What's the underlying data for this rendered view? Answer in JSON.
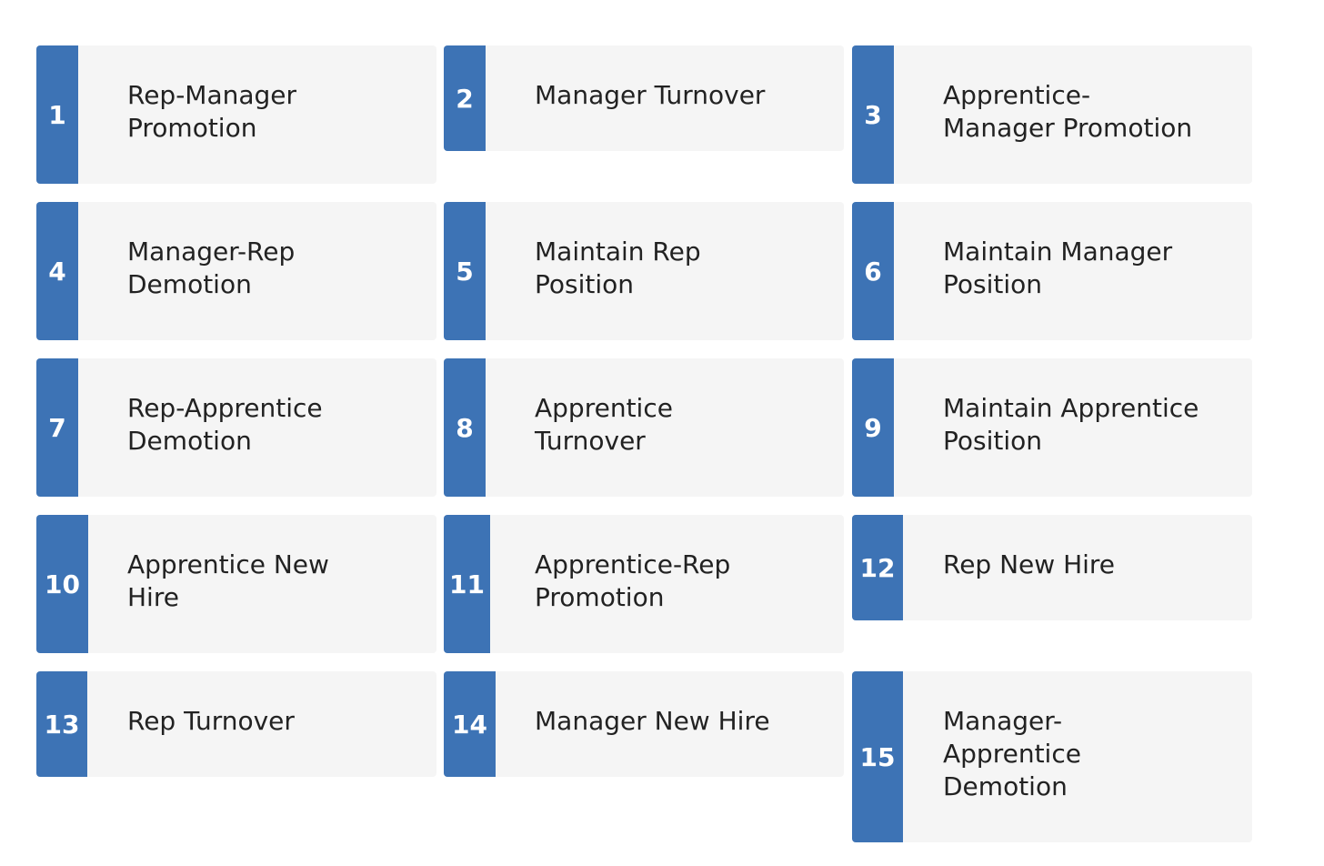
{
  "accent_color": "#3d73b5",
  "card_background": "#f5f5f5",
  "items": [
    {
      "number": "1",
      "lines": [
        "Rep-Manager",
        "Promotion"
      ]
    },
    {
      "number": "2",
      "lines": [
        "Manager Turnover",
        ""
      ]
    },
    {
      "number": "3",
      "lines": [
        "Apprentice-",
        "Manager Promotion"
      ]
    },
    {
      "number": "4",
      "lines": [
        "Manager-Rep",
        "Demotion"
      ]
    },
    {
      "number": "5",
      "lines": [
        "Maintain Rep",
        "Position"
      ]
    },
    {
      "number": "6",
      "lines": [
        "Maintain Manager",
        "Position"
      ]
    },
    {
      "number": "7",
      "lines": [
        "Rep-Apprentice",
        "Demotion"
      ]
    },
    {
      "number": "8",
      "lines": [
        "Apprentice",
        "Turnover"
      ]
    },
    {
      "number": "9",
      "lines": [
        "Maintain Apprentice",
        "Position"
      ]
    },
    {
      "number": "10",
      "lines": [
        "Apprentice New",
        "Hire"
      ]
    },
    {
      "number": "11",
      "lines": [
        "Apprentice-Rep",
        "Promotion"
      ]
    },
    {
      "number": "12",
      "lines": [
        "Rep New Hire",
        ""
      ]
    },
    {
      "number": "13",
      "lines": [
        "Rep Turnover",
        ""
      ]
    },
    {
      "number": "14",
      "lines": [
        "Manager New Hire",
        ""
      ]
    },
    {
      "number": "15",
      "lines": [
        "Manager-",
        "Apprentice",
        "Demotion"
      ]
    }
  ]
}
